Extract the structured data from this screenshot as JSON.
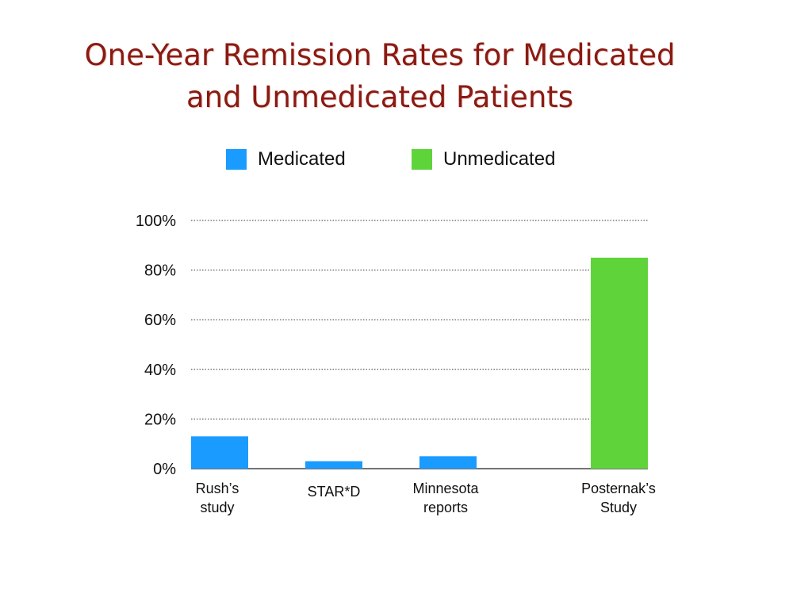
{
  "title": {
    "line1": "One-Year Remission Rates for Medicated",
    "line2": "and Unmedicated Patients"
  },
  "colors": {
    "medicated": "#1a9bff",
    "unmedicated": "#5fd43a",
    "title": "#8a1a12"
  },
  "legend": [
    {
      "name": "Medicated",
      "color": "#1a9bff"
    },
    {
      "name": "Unmedicated",
      "color": "#5fd43a"
    }
  ],
  "chart_data": {
    "type": "bar",
    "title": "One-Year Remission Rates for Medicated and Unmedicated Patients",
    "xlabel": "",
    "ylabel": "",
    "ylim": [
      0,
      100
    ],
    "yticks": [
      "0%",
      "20%",
      "40%",
      "60%",
      "80%",
      "100%"
    ],
    "ytick_values": [
      0,
      20,
      40,
      60,
      80,
      100
    ],
    "grid": true,
    "legend_position": "top",
    "categories": [
      [
        "Rush’s",
        "study"
      ],
      [
        "STAR*D"
      ],
      [
        "Minnesota",
        "reports"
      ],
      [
        "Posternak’s",
        "Study"
      ]
    ],
    "series": [
      {
        "name": "Medicated",
        "color": "#1a9bff",
        "values": [
          13,
          3,
          5,
          null
        ]
      },
      {
        "name": "Unmedicated",
        "color": "#5fd43a",
        "values": [
          null,
          null,
          null,
          85
        ]
      }
    ]
  }
}
